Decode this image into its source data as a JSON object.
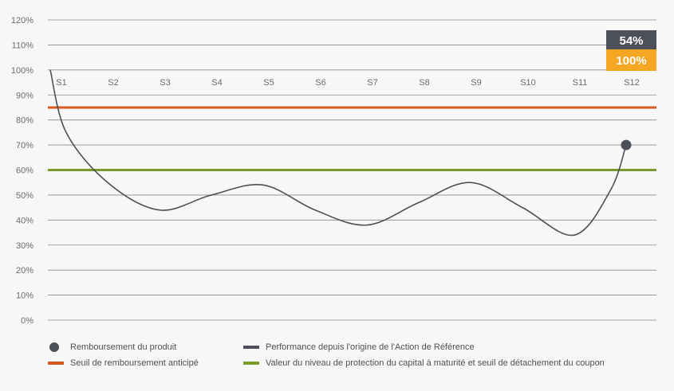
{
  "colors": {
    "performance": "#4d5058",
    "early_threshold": "#d85a1f",
    "protection_threshold": "#7a9a2c",
    "badge_top": "#4d5058",
    "badge_bottom": "#f5a623",
    "grid": "#8a8a8a"
  },
  "chart_data": {
    "type": "line",
    "ylim": [
      0,
      120
    ],
    "y_ticks": [
      "0%",
      "10%",
      "20%",
      "30%",
      "40%",
      "50%",
      "60%",
      "70%",
      "80%",
      "90%",
      "100%",
      "110%",
      "120%"
    ],
    "categories": [
      "S1",
      "S2",
      "S3",
      "S4",
      "S5",
      "S6",
      "S7",
      "S8",
      "S9",
      "S10",
      "S11",
      "S12"
    ],
    "series": [
      {
        "name": "Performance depuis l'origine de l'Action de Référence",
        "x": [
          0,
          0.2,
          1.0,
          2.0,
          3.0,
          4.0,
          5.0,
          6.0,
          7.0,
          8.0,
          9.0,
          10.0,
          10.7,
          11.0
        ],
        "values": [
          100,
          75,
          55,
          44,
          50,
          54,
          44,
          38,
          47,
          55,
          45,
          34,
          52,
          70
        ]
      }
    ],
    "thresholds": [
      {
        "name": "Seuil de remboursement anticipé",
        "value": 85
      },
      {
        "name": "Valeur du niveau de protection du capital à maturité et seuil de détachement du coupon",
        "value": 60
      }
    ],
    "end_point": {
      "label": "Remboursement du produit",
      "x": 11,
      "y": 70
    },
    "badges": {
      "top": "54%",
      "bottom": "100%"
    },
    "grid": true
  },
  "legend": {
    "item1": "Remboursement du produit",
    "item2": "Performance depuis l'origine de l'Action de Référence",
    "item3": "Seuil de remboursement anticipé",
    "item4": "Valeur du niveau de protection du capital à maturité et seuil de détachement du coupon"
  }
}
